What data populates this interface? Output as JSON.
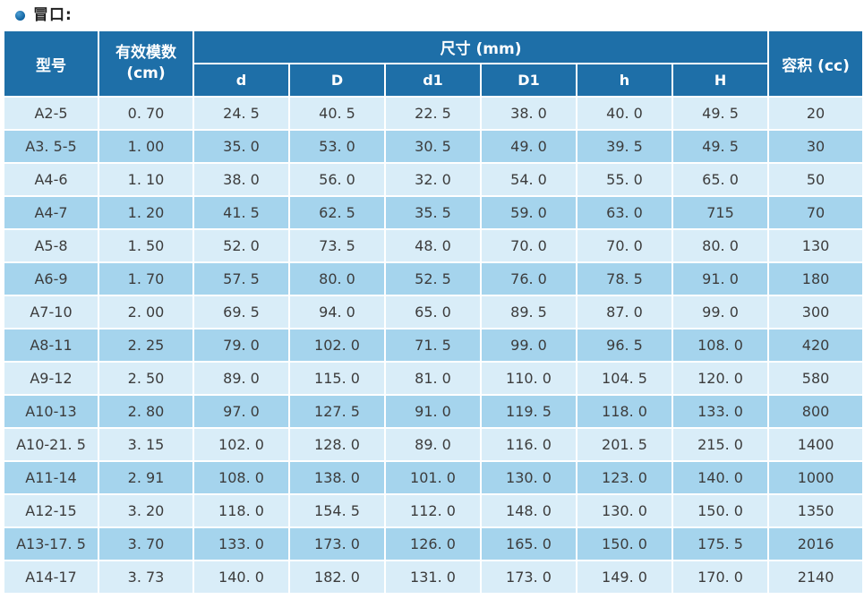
{
  "page": {
    "title": "冒口:"
  },
  "table": {
    "headers": {
      "model": "型号",
      "modulus_line1": "有效模数",
      "modulus_line2": "(cm)",
      "size_group": "尺寸 (mm)",
      "volume": "容积 (cc)",
      "dims": [
        "d",
        "D",
        "d1",
        "D1",
        "h",
        "H"
      ]
    },
    "col_keys": [
      "model",
      "modulus",
      "d",
      "D",
      "d1",
      "D1",
      "h",
      "H",
      "volume"
    ],
    "rows": [
      [
        "A2-5",
        "0. 70",
        "24. 5",
        "40. 5",
        "22. 5",
        "38. 0",
        "40. 0",
        "49. 5",
        "20"
      ],
      [
        "A3. 5-5",
        "1. 00",
        "35. 0",
        "53. 0",
        "30. 5",
        "49. 0",
        "39. 5",
        "49. 5",
        "30"
      ],
      [
        "A4-6",
        "1. 10",
        "38. 0",
        "56. 0",
        "32. 0",
        "54. 0",
        "55. 0",
        "65. 0",
        "50"
      ],
      [
        "A4-7",
        "1. 20",
        "41. 5",
        "62. 5",
        "35. 5",
        "59. 0",
        "63. 0",
        "715",
        "70"
      ],
      [
        "A5-8",
        "1. 50",
        "52. 0",
        "73. 5",
        "48. 0",
        "70. 0",
        "70. 0",
        "80. 0",
        "130"
      ],
      [
        "A6-9",
        "1. 70",
        "57. 5",
        "80. 0",
        "52. 5",
        "76. 0",
        "78. 5",
        "91. 0",
        "180"
      ],
      [
        "A7-10",
        "2. 00",
        "69. 5",
        "94. 0",
        "65. 0",
        "89. 5",
        "87. 0",
        "99. 0",
        "300"
      ],
      [
        "A8-11",
        "2. 25",
        "79. 0",
        "102. 0",
        "71. 5",
        "99. 0",
        "96. 5",
        "108. 0",
        "420"
      ],
      [
        "A9-12",
        "2. 50",
        "89. 0",
        "115. 0",
        "81. 0",
        "110. 0",
        "104. 5",
        "120. 0",
        "580"
      ],
      [
        "A10-13",
        "2. 80",
        "97. 0",
        "127. 5",
        "91. 0",
        "119. 5",
        "118. 0",
        "133. 0",
        "800"
      ],
      [
        "A10-21. 5",
        "3. 15",
        "102. 0",
        "128. 0",
        "89. 0",
        "116. 0",
        "201. 5",
        "215. 0",
        "1400"
      ],
      [
        "A11-14",
        "2. 91",
        "108. 0",
        "138. 0",
        "101. 0",
        "130. 0",
        "123. 0",
        "140. 0",
        "1000"
      ],
      [
        "A12-15",
        "3. 20",
        "118. 0",
        "154. 5",
        "112. 0",
        "148. 0",
        "130. 0",
        "150. 0",
        "1350"
      ],
      [
        "A13-17. 5",
        "3. 70",
        "133. 0",
        "173. 0",
        "126. 0",
        "165. 0",
        "150. 0",
        "175. 5",
        "2016"
      ],
      [
        "A14-17",
        "3. 73",
        "140. 0",
        "182. 0",
        "131. 0",
        "173. 0",
        "149. 0",
        "170. 0",
        "2140"
      ]
    ]
  },
  "colors": {
    "header_bg": "#1e6fa8",
    "row_light": "#d9edf8",
    "row_dark": "#a5d4ed",
    "cell_border": "#ffffff",
    "cell_text": "#3c3c3c",
    "bullet": "#0f62a0"
  }
}
